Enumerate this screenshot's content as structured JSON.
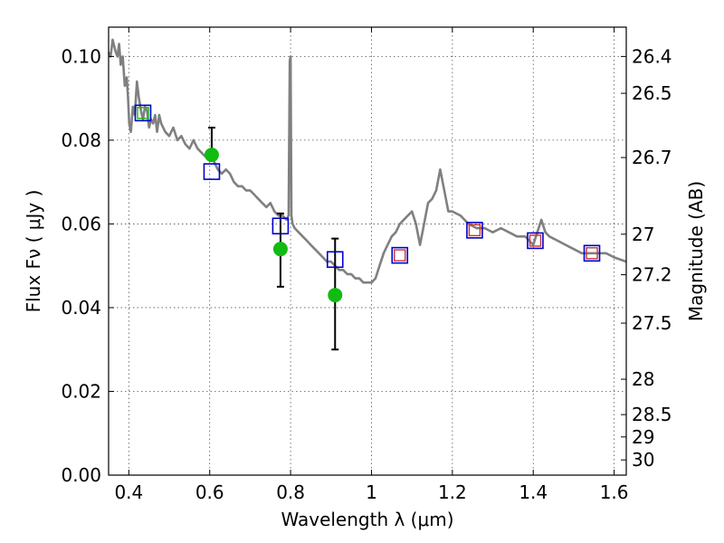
{
  "chart_data": {
    "type": "line",
    "xlabel": "Wavelength  λ (μm)",
    "ylabel": "Flux  Fν  ( μJy )",
    "y2label": "Magnitude (AB)",
    "xlim": [
      0.35,
      1.63
    ],
    "ylim": [
      0.0,
      0.107
    ],
    "grid": true,
    "xticks": [
      {
        "value": 0.4,
        "label": "0.4"
      },
      {
        "value": 0.6,
        "label": "0.6"
      },
      {
        "value": 0.8,
        "label": "0.8"
      },
      {
        "value": 1.0,
        "label": "1"
      },
      {
        "value": 1.2,
        "label": "1.2"
      },
      {
        "value": 1.4,
        "label": "1.4"
      },
      {
        "value": 1.6,
        "label": "1.6"
      }
    ],
    "yticks": [
      {
        "value": 0.0,
        "label": "0.00"
      },
      {
        "value": 0.02,
        "label": "0.02"
      },
      {
        "value": 0.04,
        "label": "0.04"
      },
      {
        "value": 0.06,
        "label": "0.06"
      },
      {
        "value": 0.08,
        "label": "0.08"
      },
      {
        "value": 0.1,
        "label": "0.10"
      }
    ],
    "y2ticks": [
      {
        "mag": 26.4,
        "label": "26.4"
      },
      {
        "mag": 26.5,
        "label": "26.5"
      },
      {
        "mag": 26.7,
        "label": "26.7"
      },
      {
        "mag": 27.0,
        "label": "27"
      },
      {
        "mag": 27.2,
        "label": "27.2"
      },
      {
        "mag": 27.5,
        "label": "27.5"
      },
      {
        "mag": 28.0,
        "label": "28"
      },
      {
        "mag": 28.5,
        "label": "28.5"
      },
      {
        "mag": 29.0,
        "label": "29"
      },
      {
        "mag": 30.0,
        "label": "30"
      }
    ],
    "colors": {
      "sed": "#808080",
      "model_blue": "#0000cc",
      "model_red": "#cc3333",
      "observed": "#11bb11",
      "errorbar": "#000000",
      "grid": "#555555"
    },
    "sed_spectrum": {
      "x": [
        0.35,
        0.355,
        0.36,
        0.365,
        0.368,
        0.372,
        0.376,
        0.38,
        0.385,
        0.39,
        0.395,
        0.398,
        0.401,
        0.405,
        0.41,
        0.415,
        0.42,
        0.425,
        0.43,
        0.435,
        0.44,
        0.445,
        0.45,
        0.455,
        0.46,
        0.465,
        0.47,
        0.475,
        0.48,
        0.49,
        0.5,
        0.51,
        0.52,
        0.53,
        0.54,
        0.55,
        0.56,
        0.57,
        0.58,
        0.59,
        0.6,
        0.61,
        0.62,
        0.63,
        0.64,
        0.65,
        0.66,
        0.67,
        0.68,
        0.69,
        0.7,
        0.71,
        0.72,
        0.73,
        0.74,
        0.75,
        0.76,
        0.77,
        0.78,
        0.79,
        0.795,
        0.798,
        0.8,
        0.802,
        0.805,
        0.81,
        0.82,
        0.83,
        0.84,
        0.85,
        0.86,
        0.87,
        0.88,
        0.89,
        0.9,
        0.91,
        0.92,
        0.93,
        0.94,
        0.95,
        0.96,
        0.97,
        0.98,
        0.99,
        1.0,
        1.01,
        1.02,
        1.03,
        1.04,
        1.05,
        1.06,
        1.07,
        1.08,
        1.09,
        1.1,
        1.11,
        1.12,
        1.13,
        1.14,
        1.15,
        1.16,
        1.17,
        1.18,
        1.19,
        1.2,
        1.22,
        1.24,
        1.26,
        1.28,
        1.3,
        1.32,
        1.34,
        1.36,
        1.38,
        1.39,
        1.4,
        1.41,
        1.42,
        1.43,
        1.44,
        1.46,
        1.48,
        1.5,
        1.52,
        1.54,
        1.56,
        1.58,
        1.6,
        1.63
      ],
      "y": [
        0.101,
        0.1,
        0.104,
        0.102,
        0.101,
        0.1,
        0.103,
        0.098,
        0.1,
        0.093,
        0.095,
        0.09,
        0.084,
        0.082,
        0.088,
        0.086,
        0.094,
        0.09,
        0.087,
        0.085,
        0.088,
        0.087,
        0.083,
        0.085,
        0.084,
        0.086,
        0.082,
        0.086,
        0.084,
        0.082,
        0.081,
        0.083,
        0.08,
        0.081,
        0.079,
        0.078,
        0.08,
        0.078,
        0.077,
        0.076,
        0.076,
        0.075,
        0.073,
        0.072,
        0.073,
        0.072,
        0.07,
        0.069,
        0.069,
        0.068,
        0.068,
        0.067,
        0.066,
        0.065,
        0.064,
        0.065,
        0.063,
        0.062,
        0.062,
        0.061,
        0.062,
        0.099,
        0.1,
        0.062,
        0.06,
        0.059,
        0.058,
        0.057,
        0.056,
        0.055,
        0.054,
        0.053,
        0.052,
        0.051,
        0.051,
        0.05,
        0.049,
        0.049,
        0.048,
        0.048,
        0.047,
        0.047,
        0.046,
        0.046,
        0.046,
        0.047,
        0.05,
        0.053,
        0.055,
        0.057,
        0.058,
        0.06,
        0.061,
        0.062,
        0.063,
        0.06,
        0.055,
        0.06,
        0.065,
        0.066,
        0.068,
        0.073,
        0.068,
        0.063,
        0.063,
        0.062,
        0.06,
        0.059,
        0.059,
        0.058,
        0.059,
        0.058,
        0.057,
        0.057,
        0.056,
        0.055,
        0.058,
        0.061,
        0.058,
        0.057,
        0.056,
        0.055,
        0.054,
        0.053,
        0.053,
        0.053,
        0.053,
        0.052,
        0.051
      ]
    },
    "model_photometry": [
      {
        "x": 0.435,
        "y": 0.0865,
        "inner": "green"
      },
      {
        "x": 0.605,
        "y": 0.0725,
        "inner": "none"
      },
      {
        "x": 0.775,
        "y": 0.0595,
        "inner": "none"
      },
      {
        "x": 0.91,
        "y": 0.0515,
        "inner": "none"
      },
      {
        "x": 1.07,
        "y": 0.0525,
        "inner": "red"
      },
      {
        "x": 1.255,
        "y": 0.0585,
        "inner": "red"
      },
      {
        "x": 1.405,
        "y": 0.056,
        "inner": "red"
      },
      {
        "x": 1.545,
        "y": 0.053,
        "inner": "red"
      }
    ],
    "observed_photometry": [
      {
        "x": 0.605,
        "y": 0.0765,
        "err_low": 0.0765,
        "err_high": 0.083
      },
      {
        "x": 0.775,
        "y": 0.054,
        "err_low": 0.045,
        "err_high": 0.0625
      },
      {
        "x": 0.91,
        "y": 0.043,
        "err_low": 0.03,
        "err_high": 0.0565
      }
    ]
  }
}
